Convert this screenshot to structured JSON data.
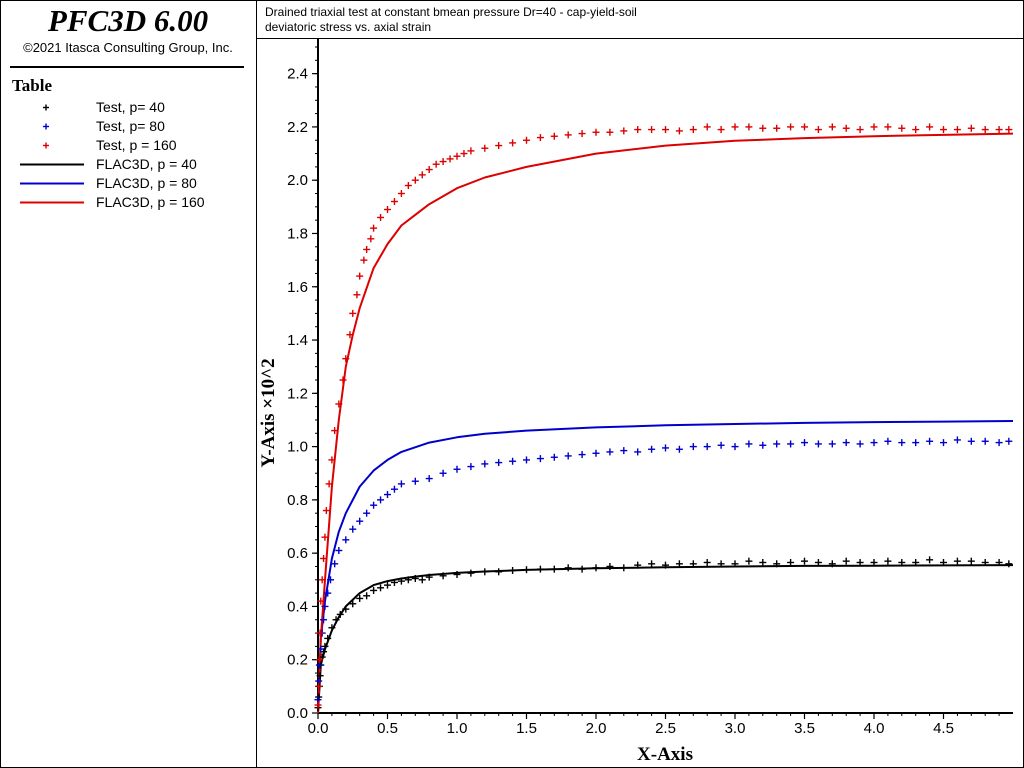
{
  "app": {
    "title": "PFC3D 6.00",
    "copyright": "©2021 Itasca Consulting Group, Inc."
  },
  "legend": {
    "heading": "Table",
    "items": [
      {
        "label": "Test, p= 40",
        "kind": "marker",
        "color": "#000000"
      },
      {
        "label": "Test, p= 80",
        "kind": "marker",
        "color": "#0000cc"
      },
      {
        "label": "Test, p = 160",
        "kind": "marker",
        "color": "#dd0000"
      },
      {
        "label": "FLAC3D, p = 40",
        "kind": "line",
        "color": "#000000"
      },
      {
        "label": "FLAC3D, p = 80",
        "kind": "line",
        "color": "#0000cc"
      },
      {
        "label": "FLAC3D, p = 160",
        "kind": "line",
        "color": "#dd0000"
      }
    ]
  },
  "plot": {
    "title": "Drained triaxial test at constant bmean pressure Dr=40 - cap-yield-soil",
    "subtitle": "deviatoric stress vs. axial strain"
  },
  "chart_data": {
    "type": "line",
    "title": "Drained triaxial test at constant bmean pressure Dr=40 - cap-yield-soil",
    "subtitle": "deviatoric stress vs. axial strain",
    "xlabel": "X-Axis",
    "ylabel": "Y-Axis ×10^2",
    "xlim": [
      0,
      5.0
    ],
    "ylim": [
      0,
      2.5
    ],
    "xticks": [
      "0.0",
      "0.5",
      "1.0",
      "1.5",
      "2.0",
      "2.5",
      "3.0",
      "3.5",
      "4.0",
      "4.5"
    ],
    "yticks": [
      "0.0",
      "0.2",
      "0.4",
      "0.6",
      "0.8",
      "1.0",
      "1.2",
      "1.4",
      "1.6",
      "1.8",
      "2.0",
      "2.2",
      "2.4"
    ],
    "grid": false,
    "legend_position": "left-panel",
    "series": [
      {
        "name": "FLAC3D, p = 40",
        "kind": "line",
        "color": "#000000",
        "x": [
          0,
          0.02,
          0.05,
          0.1,
          0.15,
          0.2,
          0.3,
          0.4,
          0.5,
          0.6,
          0.7,
          0.8,
          1.0,
          1.2,
          1.5,
          2.0,
          2.5,
          3.0,
          3.5,
          4.0,
          4.5,
          5.0
        ],
        "y": [
          0.0,
          0.18,
          0.24,
          0.31,
          0.36,
          0.4,
          0.45,
          0.48,
          0.495,
          0.505,
          0.512,
          0.518,
          0.526,
          0.531,
          0.537,
          0.543,
          0.547,
          0.55,
          0.552,
          0.553,
          0.554,
          0.555
        ]
      },
      {
        "name": "FLAC3D, p = 80",
        "kind": "line",
        "color": "#0000cc",
        "x": [
          0,
          0.02,
          0.05,
          0.1,
          0.15,
          0.2,
          0.3,
          0.4,
          0.5,
          0.6,
          0.8,
          1.0,
          1.2,
          1.5,
          2.0,
          2.5,
          3.0,
          3.5,
          4.0,
          4.5,
          5.0
        ],
        "y": [
          0.0,
          0.28,
          0.42,
          0.58,
          0.68,
          0.75,
          0.85,
          0.91,
          0.95,
          0.98,
          1.015,
          1.035,
          1.048,
          1.06,
          1.072,
          1.08,
          1.085,
          1.089,
          1.092,
          1.094,
          1.096
        ]
      },
      {
        "name": "FLAC3D, p = 160",
        "kind": "line",
        "color": "#dd0000",
        "x": [
          0,
          0.02,
          0.05,
          0.1,
          0.15,
          0.2,
          0.25,
          0.3,
          0.4,
          0.5,
          0.6,
          0.7,
          0.8,
          1.0,
          1.2,
          1.5,
          2.0,
          2.5,
          3.0,
          3.5,
          4.0,
          4.5,
          5.0
        ],
        "y": [
          0.0,
          0.28,
          0.5,
          0.85,
          1.1,
          1.3,
          1.42,
          1.52,
          1.67,
          1.76,
          1.83,
          1.87,
          1.91,
          1.97,
          2.01,
          2.05,
          2.1,
          2.13,
          2.148,
          2.158,
          2.165,
          2.17,
          2.175
        ]
      },
      {
        "name": "Test, p= 40",
        "kind": "marker",
        "color": "#000000",
        "x": [
          0,
          0.005,
          0.01,
          0.015,
          0.02,
          0.03,
          0.04,
          0.05,
          0.07,
          0.1,
          0.13,
          0.16,
          0.2,
          0.25,
          0.3,
          0.35,
          0.4,
          0.45,
          0.5,
          0.55,
          0.6,
          0.65,
          0.7,
          0.75,
          0.8,
          0.9,
          1.0,
          1.1,
          1.2,
          1.3,
          1.4,
          1.5,
          1.6,
          1.7,
          1.8,
          1.9,
          2.0,
          2.1,
          2.2,
          2.3,
          2.4,
          2.5,
          2.6,
          2.7,
          2.8,
          2.9,
          3.0,
          3.1,
          3.2,
          3.3,
          3.4,
          3.5,
          3.6,
          3.7,
          3.8,
          3.9,
          4.0,
          4.1,
          4.2,
          4.3,
          4.4,
          4.5,
          4.6,
          4.7,
          4.8,
          4.9,
          4.97
        ],
        "y": [
          0.02,
          0.06,
          0.1,
          0.14,
          0.18,
          0.21,
          0.23,
          0.25,
          0.28,
          0.32,
          0.35,
          0.37,
          0.39,
          0.41,
          0.43,
          0.44,
          0.46,
          0.47,
          0.48,
          0.49,
          0.495,
          0.5,
          0.505,
          0.5,
          0.51,
          0.515,
          0.52,
          0.525,
          0.53,
          0.53,
          0.535,
          0.538,
          0.54,
          0.54,
          0.545,
          0.54,
          0.545,
          0.55,
          0.545,
          0.555,
          0.56,
          0.555,
          0.56,
          0.56,
          0.565,
          0.56,
          0.56,
          0.57,
          0.565,
          0.56,
          0.565,
          0.57,
          0.565,
          0.56,
          0.57,
          0.565,
          0.565,
          0.57,
          0.565,
          0.565,
          0.575,
          0.565,
          0.57,
          0.57,
          0.565,
          0.565,
          0.56
        ]
      },
      {
        "name": "Test, p= 80",
        "kind": "marker",
        "color": "#0000cc",
        "x": [
          0,
          0.005,
          0.01,
          0.02,
          0.03,
          0.04,
          0.05,
          0.07,
          0.09,
          0.12,
          0.15,
          0.2,
          0.25,
          0.3,
          0.35,
          0.4,
          0.45,
          0.5,
          0.55,
          0.6,
          0.7,
          0.8,
          0.9,
          1.0,
          1.1,
          1.2,
          1.3,
          1.4,
          1.5,
          1.6,
          1.7,
          1.8,
          1.9,
          2.0,
          2.1,
          2.2,
          2.3,
          2.4,
          2.5,
          2.6,
          2.7,
          2.8,
          2.9,
          3.0,
          3.1,
          3.2,
          3.3,
          3.4,
          3.5,
          3.6,
          3.7,
          3.8,
          3.9,
          4.0,
          4.1,
          4.2,
          4.3,
          4.4,
          4.5,
          4.6,
          4.7,
          4.8,
          4.9,
          4.97
        ],
        "y": [
          0.05,
          0.12,
          0.18,
          0.24,
          0.3,
          0.35,
          0.4,
          0.45,
          0.5,
          0.56,
          0.61,
          0.65,
          0.69,
          0.72,
          0.75,
          0.78,
          0.8,
          0.82,
          0.84,
          0.86,
          0.87,
          0.88,
          0.9,
          0.915,
          0.925,
          0.935,
          0.94,
          0.945,
          0.95,
          0.955,
          0.96,
          0.965,
          0.97,
          0.975,
          0.98,
          0.985,
          0.98,
          0.99,
          0.995,
          0.99,
          1.0,
          1.0,
          1.005,
          1.0,
          1.01,
          1.005,
          1.01,
          1.01,
          1.015,
          1.01,
          1.01,
          1.015,
          1.01,
          1.015,
          1.02,
          1.015,
          1.015,
          1.02,
          1.015,
          1.025,
          1.02,
          1.02,
          1.015,
          1.02
        ]
      },
      {
        "name": "Test, p = 160",
        "kind": "marker",
        "color": "#dd0000",
        "x": [
          0,
          0.005,
          0.01,
          0.015,
          0.02,
          0.03,
          0.04,
          0.05,
          0.06,
          0.08,
          0.1,
          0.12,
          0.15,
          0.18,
          0.2,
          0.23,
          0.25,
          0.28,
          0.3,
          0.33,
          0.35,
          0.38,
          0.4,
          0.45,
          0.5,
          0.55,
          0.6,
          0.65,
          0.7,
          0.75,
          0.8,
          0.85,
          0.9,
          0.95,
          1.0,
          1.05,
          1.1,
          1.2,
          1.3,
          1.4,
          1.5,
          1.6,
          1.7,
          1.8,
          1.9,
          2.0,
          2.1,
          2.2,
          2.3,
          2.4,
          2.5,
          2.6,
          2.7,
          2.8,
          2.9,
          3.0,
          3.1,
          3.2,
          3.3,
          3.4,
          3.5,
          3.6,
          3.7,
          3.8,
          3.9,
          4.0,
          4.1,
          4.2,
          4.3,
          4.4,
          4.5,
          4.6,
          4.7,
          4.8,
          4.9,
          4.97
        ],
        "y": [
          0.03,
          0.1,
          0.2,
          0.3,
          0.42,
          0.5,
          0.58,
          0.66,
          0.76,
          0.86,
          0.95,
          1.06,
          1.16,
          1.25,
          1.33,
          1.42,
          1.5,
          1.57,
          1.64,
          1.7,
          1.74,
          1.78,
          1.82,
          1.86,
          1.89,
          1.92,
          1.95,
          1.98,
          2.0,
          2.02,
          2.04,
          2.06,
          2.07,
          2.08,
          2.09,
          2.1,
          2.11,
          2.12,
          2.13,
          2.14,
          2.15,
          2.16,
          2.165,
          2.17,
          2.175,
          2.18,
          2.18,
          2.185,
          2.19,
          2.19,
          2.19,
          2.185,
          2.19,
          2.2,
          2.19,
          2.2,
          2.2,
          2.195,
          2.195,
          2.2,
          2.2,
          2.19,
          2.2,
          2.195,
          2.19,
          2.2,
          2.2,
          2.195,
          2.19,
          2.2,
          2.19,
          2.19,
          2.195,
          2.19,
          2.19,
          2.19
        ]
      }
    ]
  }
}
